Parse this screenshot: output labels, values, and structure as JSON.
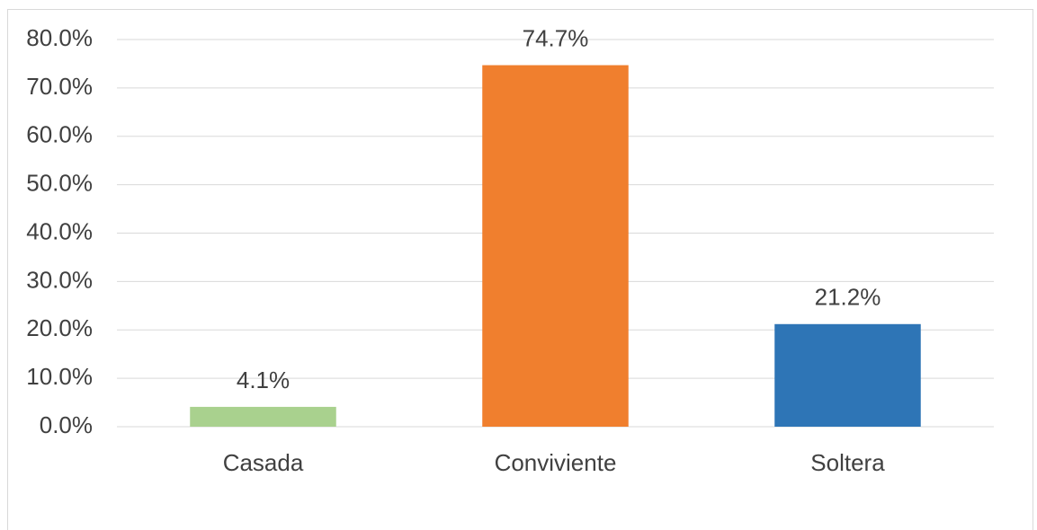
{
  "chart_data": {
    "type": "bar",
    "categories": [
      "Casada",
      "Conviviente",
      "Soltera"
    ],
    "values": [
      4.1,
      74.7,
      21.2
    ],
    "value_labels": [
      "4.1%",
      "74.7%",
      "21.2%"
    ],
    "colors": [
      "#a9d18e",
      "#f07f2e",
      "#2e75b6"
    ],
    "ylim": [
      0,
      80
    ],
    "yticks": [
      {
        "value": 0,
        "label": "0.0%"
      },
      {
        "value": 10,
        "label": "10.0%"
      },
      {
        "value": 20,
        "label": "20.0%"
      },
      {
        "value": 30,
        "label": "30.0%"
      },
      {
        "value": 40,
        "label": "40.0%"
      },
      {
        "value": 50,
        "label": "50.0%"
      },
      {
        "value": 60,
        "label": "60.0%"
      },
      {
        "value": 70,
        "label": "70.0%"
      },
      {
        "value": 80,
        "label": "80.0%"
      }
    ],
    "grid": true
  }
}
